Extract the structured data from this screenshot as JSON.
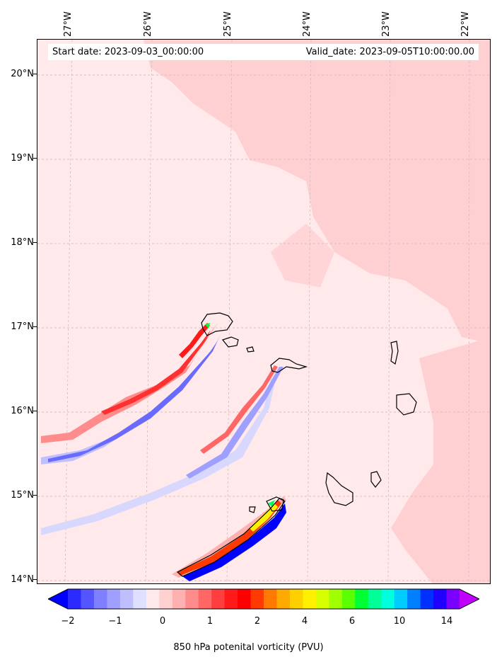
{
  "header": {
    "start_date": "Start date: 2023-09-03_00:00:00",
    "valid_date": "Valid_date: 2023-09-05T10:00:00.00"
  },
  "axes": {
    "longitude_labels": [
      "27°W",
      "26°W",
      "25°W",
      "24°W",
      "23°W",
      "22°W"
    ],
    "latitude_labels": [
      "20°N",
      "19°N",
      "18°N",
      "17°N",
      "16°N",
      "15°N",
      "14°N"
    ]
  },
  "colorbar": {
    "title": "850 hPa potenital vorticity (PVU)",
    "tick_labels": [
      "−2",
      "−1",
      "0",
      "1",
      "2",
      "4",
      "6",
      "10",
      "14"
    ],
    "colors": [
      "#0000ff",
      "#2b2bff",
      "#5555ff",
      "#7f7fff",
      "#9f9fff",
      "#bfbfff",
      "#dfdfff",
      "#ffe9ea",
      "#ffd0d0",
      "#ffb0b0",
      "#ff8c8c",
      "#ff6666",
      "#ff3f3f",
      "#ff1a1a",
      "#ff0000",
      "#ff3a00",
      "#ff7a00",
      "#ffaa00",
      "#ffd000",
      "#fff000",
      "#d8ff00",
      "#a0ff00",
      "#5aff00",
      "#00ff33",
      "#00ff99",
      "#00ffdd",
      "#00ccff",
      "#0080ff",
      "#0030ff",
      "#2000ff",
      "#7a00ff",
      "#c000ff"
    ]
  }
}
